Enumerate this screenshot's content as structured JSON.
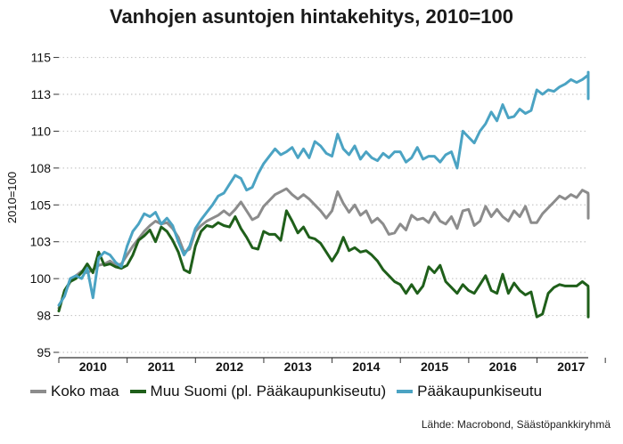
{
  "chart_data": {
    "type": "line",
    "title": "Vanhojen asuntojen hintakehitys, 2010=100",
    "ylabel": "2010=100",
    "ylim": [
      95,
      116
    ],
    "yticks": [
      "115",
      "113",
      "110",
      "108",
      "105",
      "103",
      "100",
      "98",
      "95"
    ],
    "ytick_values": [
      115,
      112.5,
      110,
      107.5,
      105,
      102.5,
      100,
      97.5,
      95
    ],
    "year_labels": [
      "2010",
      "2011",
      "2012",
      "2013",
      "2014",
      "2015",
      "2016",
      "2017"
    ],
    "x_range": [
      2010.0,
      2017.75
    ],
    "grid": "horizontal dotted",
    "legend_position": "bottom",
    "source": "Lähde: Macrobond, Säästöpankkiryhmä",
    "series": [
      {
        "name": "Koko maa",
        "color": "#8c8c8c",
        "start": 2010.0,
        "step": 0.0833,
        "values": [
          98.0,
          99.0,
          99.8,
          100.2,
          100.5,
          100.4,
          100.6,
          100.9,
          101.0,
          101.2,
          100.9,
          101.0,
          101.6,
          102.2,
          102.7,
          103.2,
          103.6,
          103.9,
          103.7,
          103.8,
          103.4,
          102.8,
          101.8,
          102.0,
          103.2,
          103.6,
          103.9,
          104.1,
          104.3,
          104.6,
          104.3,
          104.7,
          105.2,
          104.6,
          104.0,
          104.2,
          104.9,
          105.3,
          105.7,
          105.9,
          106.1,
          105.7,
          105.4,
          105.7,
          105.4,
          105.0,
          104.6,
          104.1,
          104.6,
          105.9,
          105.1,
          104.5,
          105.0,
          104.3,
          104.6,
          103.8,
          104.1,
          103.7,
          103.0,
          103.1,
          103.7,
          103.3,
          104.3,
          104.0,
          104.1,
          103.8,
          104.5,
          103.9,
          103.7,
          104.2,
          103.4,
          104.6,
          104.7,
          103.6,
          103.9,
          104.9,
          104.2,
          104.7,
          104.2,
          103.9,
          104.6,
          104.2,
          104.9,
          103.8,
          103.8,
          104.4,
          104.8,
          105.2,
          105.6,
          105.4,
          105.7,
          105.5,
          106.0,
          105.8,
          105.6,
          105.1,
          105.7,
          104.1
        ]
      },
      {
        "name": "Muu Suomi (pl. Pääkaupunkiseutu)",
        "color": "#1f5f1a",
        "start": 2010.0,
        "step": 0.0833,
        "values": [
          97.8,
          99.2,
          99.8,
          100.0,
          100.4,
          101.0,
          100.4,
          101.8,
          100.9,
          101.0,
          100.8,
          100.7,
          100.9,
          101.6,
          102.6,
          102.9,
          103.3,
          102.5,
          103.5,
          103.2,
          102.6,
          101.8,
          100.6,
          100.4,
          102.2,
          103.2,
          103.6,
          103.5,
          103.8,
          103.6,
          103.5,
          104.2,
          103.4,
          102.8,
          102.1,
          102.0,
          103.2,
          103.0,
          103.0,
          102.6,
          104.6,
          103.9,
          103.1,
          103.5,
          102.8,
          102.7,
          102.4,
          101.8,
          101.2,
          101.8,
          102.8,
          101.9,
          102.1,
          101.8,
          101.9,
          101.6,
          101.2,
          100.6,
          100.2,
          99.8,
          99.6,
          99.0,
          99.6,
          99.0,
          99.5,
          100.8,
          100.4,
          100.9,
          99.8,
          99.4,
          99.0,
          99.6,
          99.2,
          99.0,
          99.6,
          100.2,
          99.2,
          99.0,
          100.3,
          99.0,
          99.7,
          99.2,
          98.9,
          99.1,
          97.4,
          97.6,
          99.0,
          99.4,
          99.6,
          99.5,
          99.5,
          99.5,
          99.8,
          99.5,
          99.2,
          98.1,
          98.8,
          97.4
        ]
      },
      {
        "name": "Pääkaupunkiseutu",
        "color": "#4ba3c3",
        "start": 2010.0,
        "step": 0.0833,
        "values": [
          98.2,
          98.8,
          100.0,
          100.2,
          100.0,
          100.7,
          98.7,
          101.4,
          101.8,
          101.6,
          101.1,
          100.8,
          102.2,
          103.2,
          103.7,
          104.4,
          104.2,
          104.5,
          103.7,
          104.1,
          103.6,
          102.5,
          101.6,
          102.2,
          103.4,
          104.0,
          104.5,
          105.0,
          105.6,
          105.8,
          106.4,
          107.0,
          106.8,
          106.0,
          106.2,
          107.1,
          107.8,
          108.3,
          108.8,
          108.4,
          108.6,
          108.9,
          108.2,
          108.8,
          108.2,
          109.3,
          109.0,
          108.5,
          108.3,
          109.8,
          108.8,
          108.4,
          109.0,
          108.1,
          108.6,
          108.2,
          108.0,
          108.5,
          108.2,
          108.6,
          108.6,
          107.9,
          108.2,
          108.9,
          108.1,
          108.3,
          108.3,
          107.9,
          108.4,
          108.6,
          107.5,
          110.0,
          109.6,
          109.2,
          110.0,
          110.5,
          111.3,
          110.7,
          111.8,
          110.9,
          111.0,
          111.5,
          111.2,
          111.4,
          112.8,
          112.5,
          112.8,
          112.7,
          113.0,
          113.2,
          113.5,
          113.3,
          113.5,
          113.8,
          113.9,
          114.0,
          113.8,
          112.2
        ]
      }
    ]
  }
}
